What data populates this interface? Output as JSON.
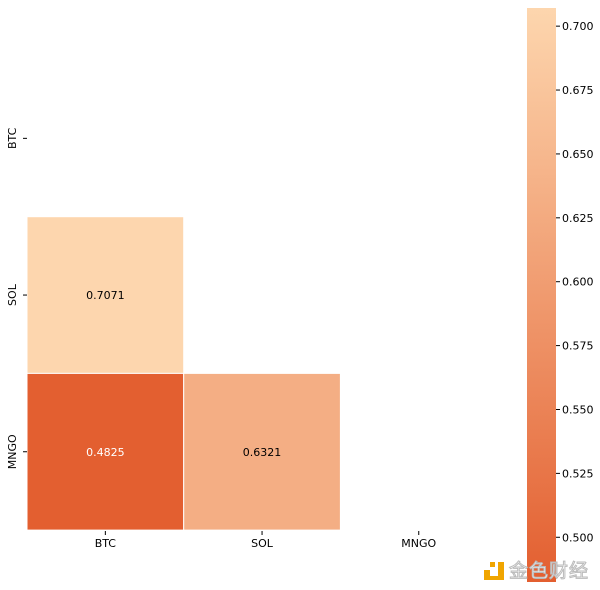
{
  "chart_data": {
    "type": "heatmap",
    "title": "",
    "xlabel": "",
    "ylabel": "",
    "x_categories": [
      "BTC",
      "SOL",
      "MNGO"
    ],
    "y_categories": [
      "BTC",
      "SOL",
      "MNGO"
    ],
    "mask": "upper-triangle-including-diagonal",
    "cells": [
      {
        "row": "SOL",
        "col": "BTC",
        "value": 0.7071,
        "label": "0.7071"
      },
      {
        "row": "MNGO",
        "col": "BTC",
        "value": 0.4825,
        "label": "0.4825"
      },
      {
        "row": "MNGO",
        "col": "SOL",
        "value": 0.6321,
        "label": "0.6321"
      }
    ],
    "colorbar": {
      "range": [
        0.4825,
        0.7071
      ],
      "ticks": [
        "0.500",
        "0.525",
        "0.550",
        "0.575",
        "0.600",
        "0.625",
        "0.650",
        "0.675",
        "0.700"
      ],
      "color_low": "#e35f30",
      "color_high": "#fdd6ae"
    }
  },
  "watermark": {
    "text": "金色财经"
  }
}
